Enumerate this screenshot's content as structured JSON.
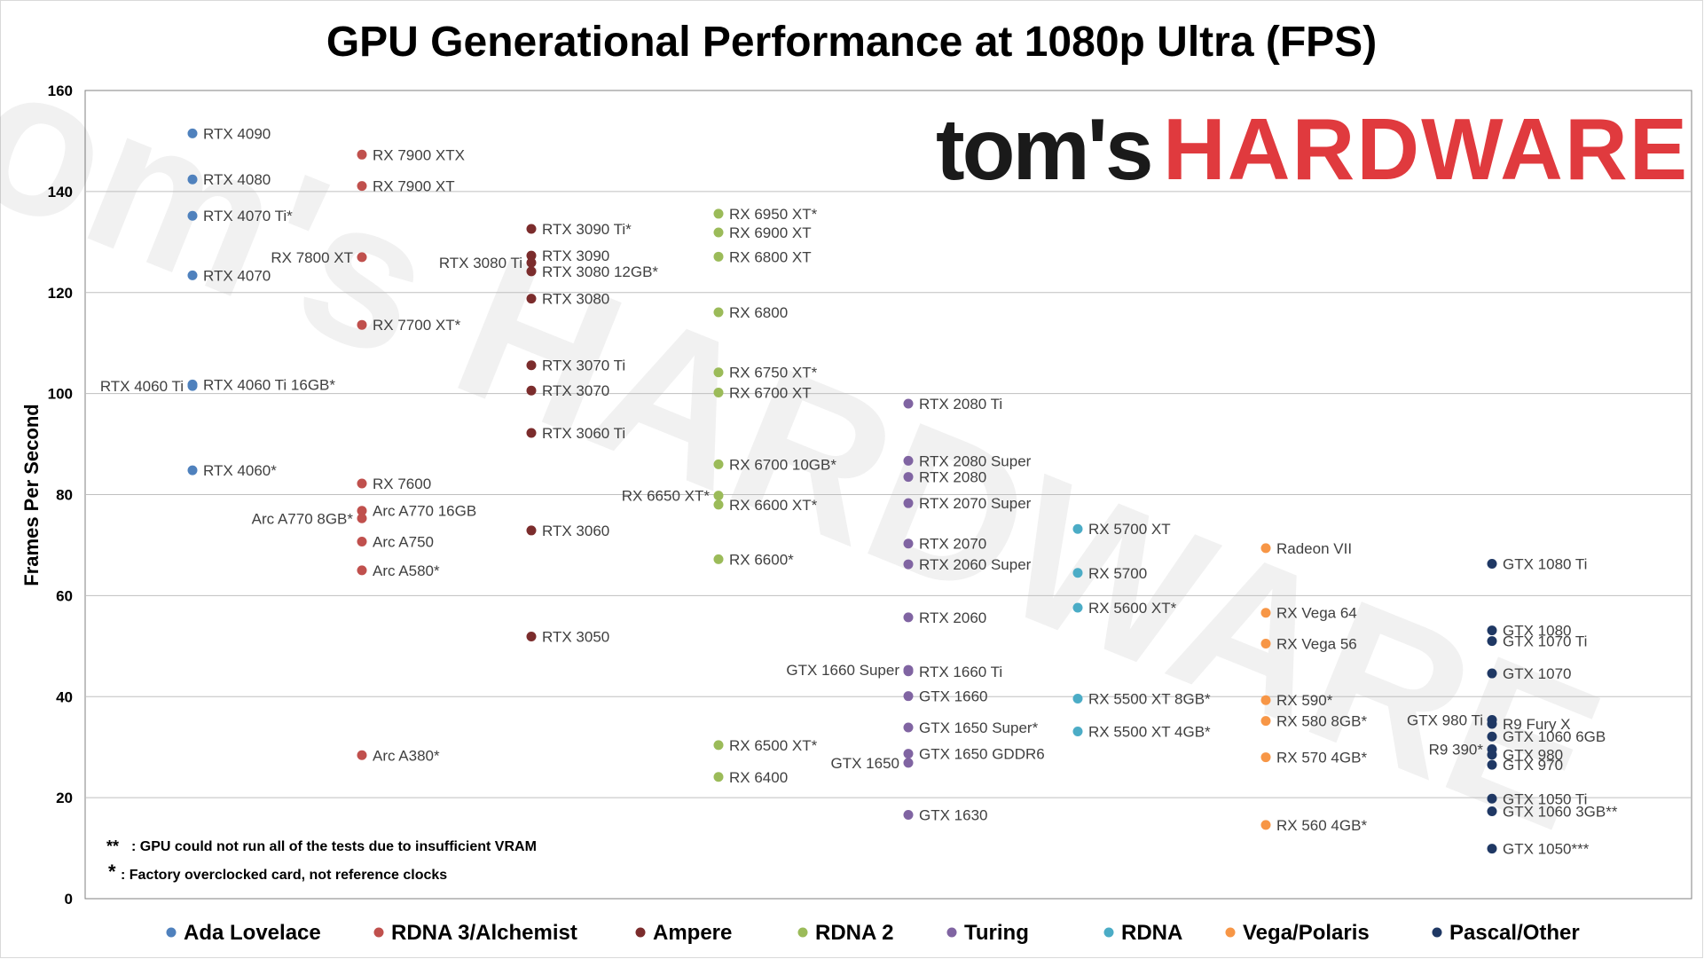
{
  "chart_data": {
    "type": "scatter",
    "title": "GPU Generational Performance at 1080p Ultra (FPS)",
    "xlabel": "",
    "ylabel": "Frames Per Second",
    "ylim": [
      0,
      160
    ],
    "yticks": [
      "0",
      "20",
      "40",
      "60",
      "80",
      "100",
      "120",
      "140",
      "160"
    ],
    "grid": true,
    "legend_position": "bottom",
    "logo": {
      "part1": "tom's",
      "part2": "HARDWARE"
    },
    "notes": [
      {
        "mark": "**",
        "text": ": GPU could not run all of the tests due to insufficient VRAM"
      },
      {
        "mark": "*",
        "text": ": Factory overclocked card, not reference clocks"
      }
    ],
    "series": [
      {
        "name": "Ada Lovelace",
        "color": "#4f81bd",
        "points": [
          {
            "label": "RTX 4090",
            "y": 151.5
          },
          {
            "label": "RTX 4080",
            "y": 142.4
          },
          {
            "label": "RTX 4070 Ti*",
            "y": 135.2
          },
          {
            "label": "RTX 4070",
            "y": 123.4
          },
          {
            "label": "RTX 4060 Ti 16GB*",
            "y": 101.8
          },
          {
            "label": "RTX 4060 Ti",
            "y": 101.5,
            "side": "left"
          },
          {
            "label": "RTX 4060*",
            "y": 84.8
          }
        ]
      },
      {
        "name": "RDNA 3/Alchemist",
        "color": "#c0504d",
        "points": [
          {
            "label": "RX 7900 XTX",
            "y": 147.3
          },
          {
            "label": "RX 7900 XT",
            "y": 141.1
          },
          {
            "label": "RX 7800 XT",
            "y": 127.0,
            "side": "left"
          },
          {
            "label": "RX 7700 XT*",
            "y": 113.6
          },
          {
            "label": "RX 7600",
            "y": 82.2
          },
          {
            "label": "Arc A770 16GB",
            "y": 76.8
          },
          {
            "label": "Arc A770 8GB*",
            "y": 75.3,
            "side": "left"
          },
          {
            "label": "Arc A750",
            "y": 70.7
          },
          {
            "label": "Arc A580*",
            "y": 65.0
          },
          {
            "label": "Arc A380*",
            "y": 28.4
          }
        ]
      },
      {
        "name": "Ampere",
        "color": "#7b2c2c",
        "points": [
          {
            "label": "RTX 3090 Ti*",
            "y": 132.6
          },
          {
            "label": "RTX 3090",
            "y": 127.3
          },
          {
            "label": "RTX 3080 Ti",
            "y": 125.9,
            "side": "left"
          },
          {
            "label": "RTX 3080 12GB*",
            "y": 124.2
          },
          {
            "label": "RTX 3080",
            "y": 118.8
          },
          {
            "label": "RTX 3070 Ti",
            "y": 105.6
          },
          {
            "label": "RTX 3070",
            "y": 100.6
          },
          {
            "label": "RTX 3060 Ti",
            "y": 92.2
          },
          {
            "label": "RTX 3060",
            "y": 72.9
          },
          {
            "label": "RTX 3050",
            "y": 51.9
          }
        ]
      },
      {
        "name": "RDNA 2",
        "color": "#9bbb59",
        "points": [
          {
            "label": "RX 6950 XT*",
            "y": 135.6
          },
          {
            "label": "RX 6900 XT",
            "y": 131.9
          },
          {
            "label": "RX 6800 XT",
            "y": 127.1
          },
          {
            "label": "RX 6800",
            "y": 116.1
          },
          {
            "label": "RX 6750 XT*",
            "y": 104.2
          },
          {
            "label": "RX 6700 XT",
            "y": 100.2
          },
          {
            "label": "RX 6700 10GB*",
            "y": 86.0
          },
          {
            "label": "RX 6650 XT*",
            "y": 79.8,
            "side": "left"
          },
          {
            "label": "RX 6600 XT*",
            "y": 78.0
          },
          {
            "label": "RX 6600*",
            "y": 67.2
          },
          {
            "label": "RX 6500 XT*",
            "y": 30.4
          },
          {
            "label": "RX 6400",
            "y": 24.1
          }
        ]
      },
      {
        "name": "Turing",
        "color": "#8064a2",
        "points": [
          {
            "label": "RTX 2080 Ti",
            "y": 98.0
          },
          {
            "label": "RTX 2080 Super",
            "y": 86.7
          },
          {
            "label": "RTX 2080",
            "y": 83.5
          },
          {
            "label": "RTX 2070 Super",
            "y": 78.3
          },
          {
            "label": "RTX 2070",
            "y": 70.3
          },
          {
            "label": "RTX 2060 Super",
            "y": 66.2
          },
          {
            "label": "RTX 2060",
            "y": 55.7
          },
          {
            "label": "RTX 1660 Ti",
            "y": 45.0
          },
          {
            "label": "GTX 1660 Super",
            "y": 45.3,
            "side": "left"
          },
          {
            "label": "GTX 1660",
            "y": 40.1
          },
          {
            "label": "GTX 1650 Super*",
            "y": 33.9
          },
          {
            "label": "GTX 1650 GDDR6",
            "y": 28.7
          },
          {
            "label": "GTX 1650",
            "y": 26.9,
            "side": "left"
          },
          {
            "label": "GTX 1630",
            "y": 16.6
          }
        ]
      },
      {
        "name": "RDNA",
        "color": "#4bacc6",
        "points": [
          {
            "label": "RX 5700 XT",
            "y": 73.2
          },
          {
            "label": "RX 5700",
            "y": 64.5
          },
          {
            "label": "RX 5600 XT*",
            "y": 57.6
          },
          {
            "label": "RX 5500 XT 8GB*",
            "y": 39.6
          },
          {
            "label": "RX 5500 XT 4GB*",
            "y": 33.1
          }
        ]
      },
      {
        "name": "Vega/Polaris",
        "color": "#f79646",
        "points": [
          {
            "label": "Radeon VII",
            "y": 69.4
          },
          {
            "label": "RX Vega 64",
            "y": 56.6
          },
          {
            "label": "RX Vega 56",
            "y": 50.5
          },
          {
            "label": "RX 590*",
            "y": 39.3
          },
          {
            "label": "RX 580 8GB*",
            "y": 35.2
          },
          {
            "label": "RX 570 4GB*",
            "y": 28.0
          },
          {
            "label": "RX 560 4GB*",
            "y": 14.6
          }
        ]
      },
      {
        "name": "Pascal/Other",
        "color": "#1f3864",
        "points": [
          {
            "label": "GTX 1080 Ti",
            "y": 66.3
          },
          {
            "label": "GTX 1080",
            "y": 53.1
          },
          {
            "label": "GTX 1070 Ti",
            "y": 51.0
          },
          {
            "label": "GTX 1070",
            "y": 44.6
          },
          {
            "label": "GTX 980 Ti",
            "y": 35.4,
            "side": "left"
          },
          {
            "label": "R9 Fury X",
            "y": 34.6
          },
          {
            "label": "GTX 1060 6GB",
            "y": 32.1
          },
          {
            "label": "R9 390*",
            "y": 29.6,
            "side": "left"
          },
          {
            "label": "GTX 980",
            "y": 28.5
          },
          {
            "label": "GTX 970",
            "y": 26.5
          },
          {
            "label": "GTX 1050 Ti",
            "y": 19.8
          },
          {
            "label": "GTX 1060 3GB**",
            "y": 17.3
          },
          {
            "label": "GTX 1050***",
            "y": 9.9
          }
        ]
      }
    ]
  }
}
